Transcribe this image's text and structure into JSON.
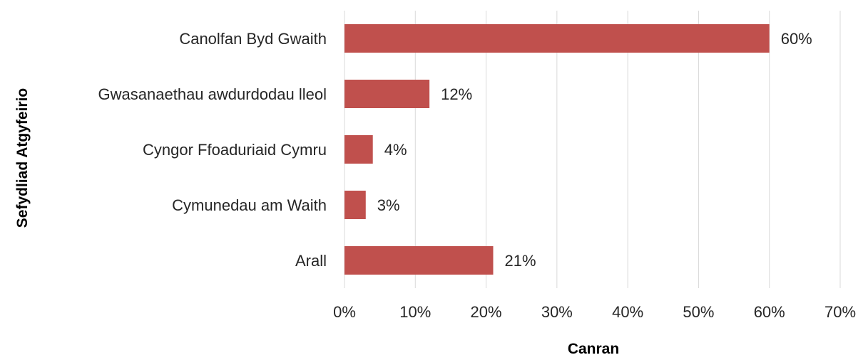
{
  "chart_data": {
    "type": "bar",
    "orientation": "horizontal",
    "categories": [
      "Canolfan Byd Gwaith",
      "Gwasanaethau awdurdodau lleol",
      "Cyngor Ffoaduriaid Cymru",
      "Cymunedau am Waith",
      "Arall"
    ],
    "values": [
      60,
      12,
      4,
      3,
      21
    ],
    "data_labels": [
      "60%",
      "12%",
      "4%",
      "3%",
      "21%"
    ],
    "value_axis": {
      "min": 0,
      "max": 70,
      "ticks": [
        0,
        10,
        20,
        30,
        40,
        50,
        60,
        70
      ],
      "tick_labels": [
        "0%",
        "10%",
        "20%",
        "30%",
        "40%",
        "50%",
        "60%",
        "70%"
      ]
    },
    "xlabel": "Canran",
    "ylabel": "Sefydliad Atgyfeirio",
    "grid": "vertical",
    "legend": "none",
    "bar_color": "#c0504d"
  }
}
